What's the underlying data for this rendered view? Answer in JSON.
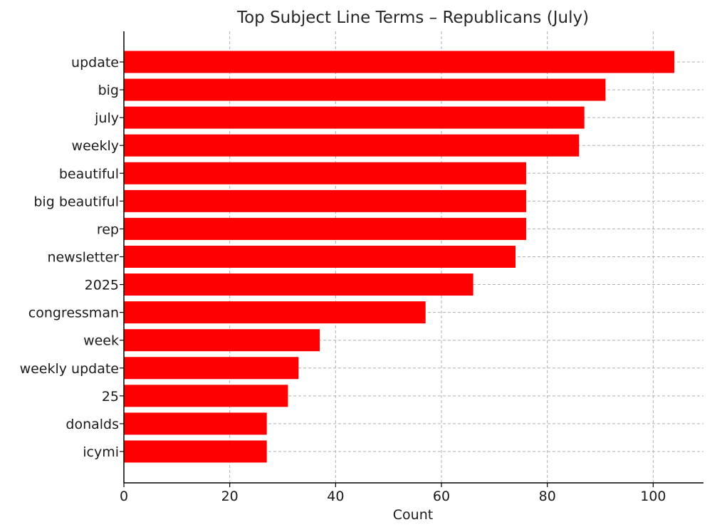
{
  "chart_data": {
    "type": "bar",
    "orientation": "horizontal",
    "title": "Top Subject Line Terms – Republicans (July)",
    "xlabel": "Count",
    "ylabel": "",
    "xlim": [
      0,
      109.5
    ],
    "xticks": [
      0,
      20,
      40,
      60,
      80,
      100
    ],
    "grid": true,
    "bar_color": "#ff0000",
    "categories": [
      "update",
      "big",
      "july",
      "weekly",
      "beautiful",
      "big beautiful",
      "rep",
      "newsletter",
      "2025",
      "congressman",
      "week",
      "weekly update",
      "25",
      "donalds",
      "icymi"
    ],
    "values": [
      104,
      91,
      87,
      86,
      76,
      76,
      76,
      74,
      66,
      57,
      37,
      33,
      31,
      27,
      27
    ]
  }
}
